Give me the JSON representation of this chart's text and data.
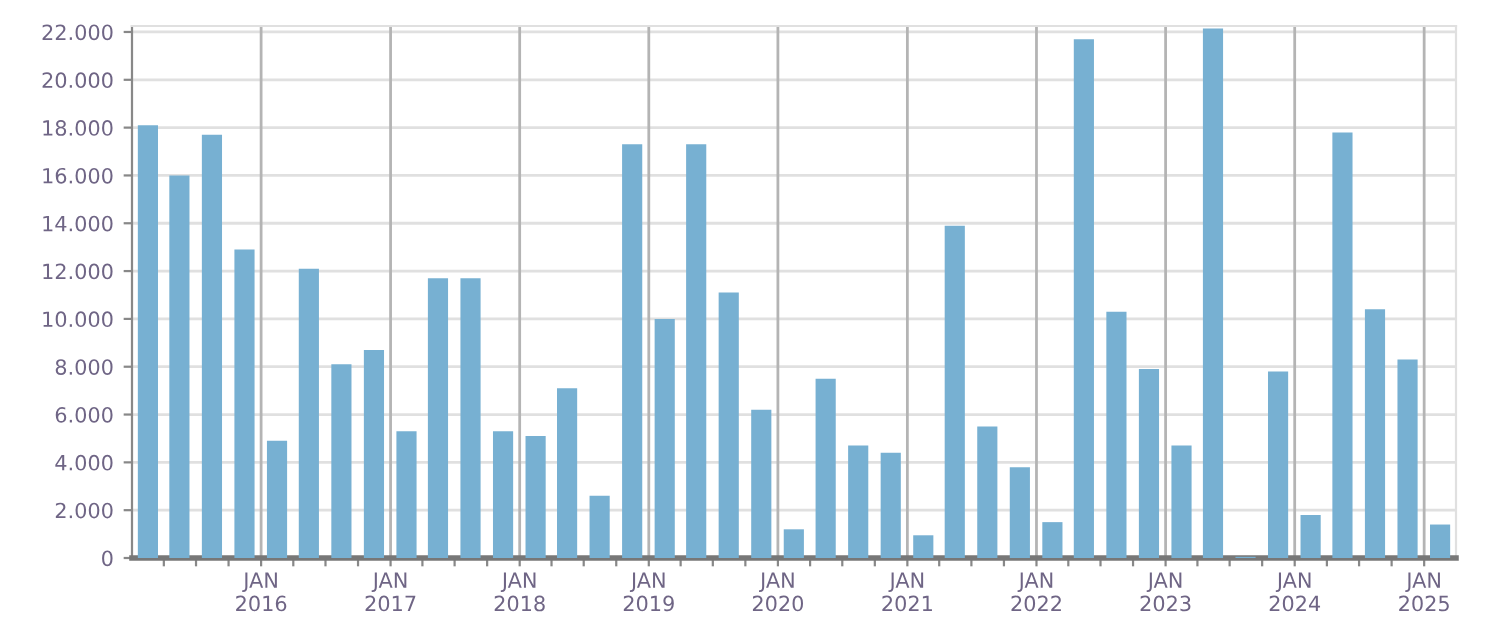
{
  "chart_data": {
    "type": "bar",
    "color": "#77b0d2",
    "grid": true,
    "x": [
      "2015-02-15",
      "2015-05-15",
      "2015-08-15",
      "2015-11-15",
      "2016-02-15",
      "2016-05-15",
      "2016-08-15",
      "2016-11-15",
      "2017-02-15",
      "2017-05-15",
      "2017-08-15",
      "2017-11-15",
      "2018-02-15",
      "2018-05-15",
      "2018-08-15",
      "2018-11-15",
      "2019-02-15",
      "2019-05-15",
      "2019-08-15",
      "2019-11-15",
      "2020-02-15",
      "2020-05-15",
      "2020-08-15",
      "2020-11-15",
      "2021-02-15",
      "2021-05-15",
      "2021-08-15",
      "2021-11-15",
      "2022-02-15",
      "2022-05-15",
      "2022-08-15",
      "2022-11-15",
      "2023-02-15",
      "2023-05-15",
      "2023-08-15",
      "2023-11-15",
      "2024-02-15",
      "2024-05-15",
      "2024-08-15",
      "2024-11-15",
      "2025-02-15"
    ],
    "values": [
      18100,
      16000,
      17700,
      12900,
      4900,
      12100,
      8100,
      8700,
      5300,
      11700,
      11700,
      5300,
      5100,
      7100,
      2600,
      17300,
      10000,
      17300,
      11100,
      6200,
      1200,
      7500,
      4700,
      4400,
      950,
      13900,
      5500,
      3800,
      1500,
      21700,
      10300,
      7900,
      4700,
      22150,
      50,
      7800,
      1800,
      17800,
      10400,
      8300,
      1400
    ],
    "xlim": [
      "2015-01-01",
      "2025-04-01"
    ],
    "xticks": [
      {
        "value": "2015-04-01",
        "label": null
      },
      {
        "value": "2015-07-01",
        "label": null
      },
      {
        "value": "2015-10-01",
        "label": null
      },
      {
        "value": "2016-01-01",
        "label": "JAN\n2016"
      },
      {
        "value": "2016-04-01",
        "label": null
      },
      {
        "value": "2016-07-01",
        "label": null
      },
      {
        "value": "2016-10-01",
        "label": null
      },
      {
        "value": "2017-01-01",
        "label": "JAN\n2017"
      },
      {
        "value": "2017-04-01",
        "label": null
      },
      {
        "value": "2017-07-01",
        "label": null
      },
      {
        "value": "2017-10-01",
        "label": null
      },
      {
        "value": "2018-01-01",
        "label": "JAN\n2018"
      },
      {
        "value": "2018-04-01",
        "label": null
      },
      {
        "value": "2018-07-01",
        "label": null
      },
      {
        "value": "2018-10-01",
        "label": null
      },
      {
        "value": "2019-01-01",
        "label": "JAN\n2019"
      },
      {
        "value": "2019-04-01",
        "label": null
      },
      {
        "value": "2019-07-01",
        "label": null
      },
      {
        "value": "2019-10-01",
        "label": null
      },
      {
        "value": "2020-01-01",
        "label": "JAN\n2020"
      },
      {
        "value": "2020-04-01",
        "label": null
      },
      {
        "value": "2020-07-01",
        "label": null
      },
      {
        "value": "2020-10-01",
        "label": null
      },
      {
        "value": "2021-01-01",
        "label": "JAN\n2021"
      },
      {
        "value": "2021-04-01",
        "label": null
      },
      {
        "value": "2021-07-01",
        "label": null
      },
      {
        "value": "2021-10-01",
        "label": null
      },
      {
        "value": "2022-01-01",
        "label": "JAN\n2022"
      },
      {
        "value": "2022-04-01",
        "label": null
      },
      {
        "value": "2022-07-01",
        "label": null
      },
      {
        "value": "2022-10-01",
        "label": null
      },
      {
        "value": "2023-01-01",
        "label": "JAN\n2023"
      },
      {
        "value": "2023-04-01",
        "label": null
      },
      {
        "value": "2023-07-01",
        "label": null
      },
      {
        "value": "2023-10-01",
        "label": null
      },
      {
        "value": "2024-01-01",
        "label": "JAN\n2024"
      },
      {
        "value": "2024-04-01",
        "label": null
      },
      {
        "value": "2024-07-01",
        "label": null
      },
      {
        "value": "2024-10-01",
        "label": null
      },
      {
        "value": "2025-01-01",
        "label": "JAN\n2025"
      }
    ],
    "ylim": [
      0,
      22250
    ],
    "yticks": [
      {
        "value": 0,
        "label": "0"
      },
      {
        "value": 2000,
        "label": "2.000"
      },
      {
        "value": 4000,
        "label": "4.000"
      },
      {
        "value": 6000,
        "label": "6.000"
      },
      {
        "value": 8000,
        "label": "8.000"
      },
      {
        "value": 10000,
        "label": "10.000"
      },
      {
        "value": 12000,
        "label": "12.000"
      },
      {
        "value": 14000,
        "label": "14.000"
      },
      {
        "value": 16000,
        "label": "16.000"
      },
      {
        "value": 18000,
        "label": "18.000"
      },
      {
        "value": 20000,
        "label": "20.000"
      },
      {
        "value": 22000,
        "label": "22.000"
      }
    ]
  }
}
